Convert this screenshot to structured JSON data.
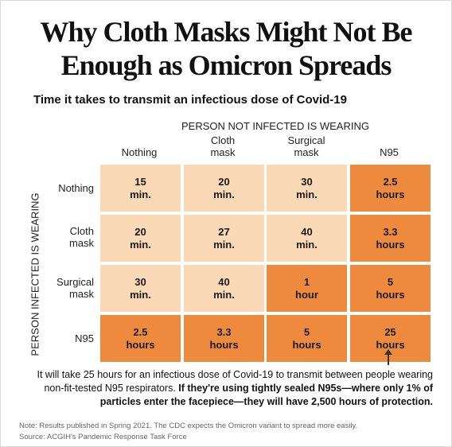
{
  "chart_data": {
    "type": "heatmap",
    "title_line1": "Why Cloth Masks Might Not Be",
    "title_line2": "Enough as Omicron Spreads",
    "subtitle": "Time it takes to transmit an infectious dose of Covid-19",
    "xlabel": "PERSON NOT INFECTED IS WEARING",
    "ylabel": "PERSON INFECTED IS WEARING",
    "columns": [
      "Nothing",
      "Cloth\nmask",
      "Surgical\nmask",
      "N95"
    ],
    "rows": [
      "Nothing",
      "Cloth\nmask",
      "Surgical\nmask",
      "N95"
    ],
    "cells": [
      [
        {
          "value": "15",
          "unit": "min."
        },
        {
          "value": "20",
          "unit": "min."
        },
        {
          "value": "30",
          "unit": "min."
        },
        {
          "value": "2.5",
          "unit": "hours"
        }
      ],
      [
        {
          "value": "20",
          "unit": "min."
        },
        {
          "value": "27",
          "unit": "min."
        },
        {
          "value": "40",
          "unit": "min."
        },
        {
          "value": "3.3",
          "unit": "hours"
        }
      ],
      [
        {
          "value": "30",
          "unit": "min."
        },
        {
          "value": "40",
          "unit": "min."
        },
        {
          "value": "1",
          "unit": "hour"
        },
        {
          "value": "5",
          "unit": "hours"
        }
      ],
      [
        {
          "value": "2.5",
          "unit": "hours"
        },
        {
          "value": "3.3",
          "unit": "hours"
        },
        {
          "value": "5",
          "unit": "hours"
        },
        {
          "value": "25",
          "unit": "hours"
        }
      ]
    ],
    "minutes": [
      [
        15,
        20,
        30,
        150
      ],
      [
        20,
        27,
        40,
        198
      ],
      [
        30,
        40,
        60,
        300
      ],
      [
        150,
        198,
        300,
        1500
      ]
    ],
    "colors": {
      "under_one_hour": "#fbd9b6",
      "one_hour_or_more": "#ee8a3e"
    },
    "annotation_line1": "It will take 25 hours for an infectious dose of Covid-19 to transmit between people wearing",
    "annotation_line2_plain": "non-fit-tested N95 respirators. ",
    "annotation_line2_bold": "If they're using tightly sealed N95s—where only 1% of",
    "annotation_line3_bold": "particles enter the facepiece—they will have 2,500 hours of protection.",
    "note": "Note: Results published in Spring 2021. The CDC expects the Omicron variant to spread more easily.",
    "source": "Source: ACGIH's Pandemic Response Task Force"
  }
}
